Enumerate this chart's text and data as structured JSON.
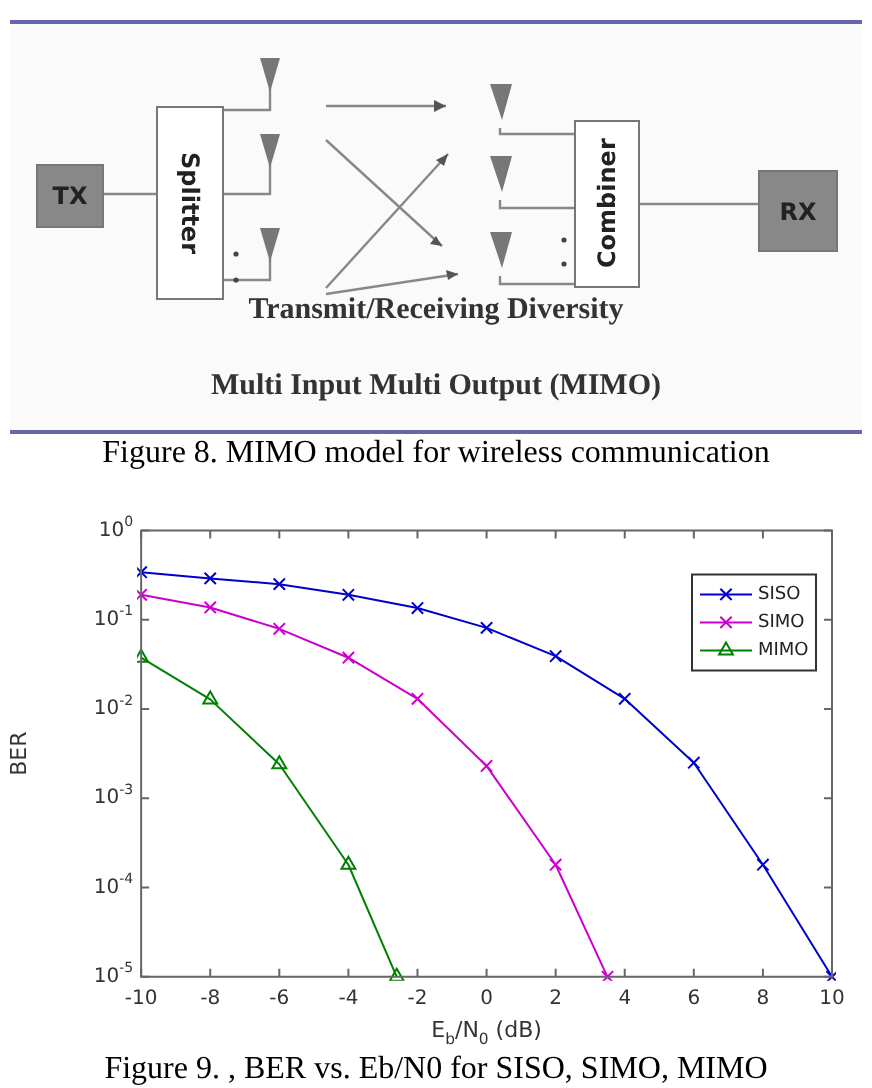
{
  "chart_data": {
    "type": "line",
    "xlabel": "E$_{b}$/N$_{0}$ (dB)",
    "ylabel": "BER",
    "xlim": [
      -10,
      10
    ],
    "xticks": [
      -10,
      -8,
      -6,
      -4,
      -2,
      0,
      2,
      4,
      6,
      8,
      10
    ],
    "ylim": [
      1e-05,
      1
    ],
    "log": "y",
    "yticks": [
      {
        "value": 1,
        "label": "10$^{0}$"
      },
      {
        "value": 0.1,
        "label": "10$^{-1}$"
      },
      {
        "value": 0.01,
        "label": "10$^{-2}$"
      },
      {
        "value": 0.001,
        "label": "10$^{-3}$"
      },
      {
        "value": 0.0001,
        "label": "10$^{-4}$"
      },
      {
        "value": 1e-05,
        "label": "10$^{-5}$"
      }
    ],
    "grid": false,
    "legend": "top right",
    "line_style": "solid",
    "series": [
      {
        "name": "SISO",
        "color": "#0000cc",
        "marker": "cross",
        "x": [
          -10,
          -8,
          -6,
          -4,
          -2,
          0,
          2,
          4,
          6,
          8,
          10
        ],
        "values": [
          0.34,
          0.29,
          0.25,
          0.19,
          0.135,
          0.081,
          0.039,
          0.013,
          0.0025,
          0.00018,
          1e-05
        ]
      },
      {
        "name": "SIMO",
        "color": "#cc00cc",
        "marker": "cross",
        "x": [
          -10,
          -8,
          -6,
          -4,
          -2,
          0,
          2,
          3.5
        ],
        "values": [
          0.19,
          0.137,
          0.079,
          0.0375,
          0.013,
          0.0023,
          0.00018,
          1e-05
        ]
      },
      {
        "name": "MIMO",
        "color": "#008000",
        "marker": "triangle",
        "x": [
          -10,
          -8,
          -6,
          -4,
          -2.6
        ],
        "values": [
          0.0375,
          0.0128,
          0.0024,
          0.00018,
          1e-05
        ]
      }
    ],
    "annotations": [
      "TX",
      "Splitter",
      "Combiner",
      "RX",
      "Transmit/Receiving Diversity",
      "Multi Input Multi Output (MIMO)",
      "Figure 8. MIMO model for wireless communication",
      "Figure 9. , BER vs. Eb/N0 for SISO, SIMO, MIMO"
    ]
  }
}
